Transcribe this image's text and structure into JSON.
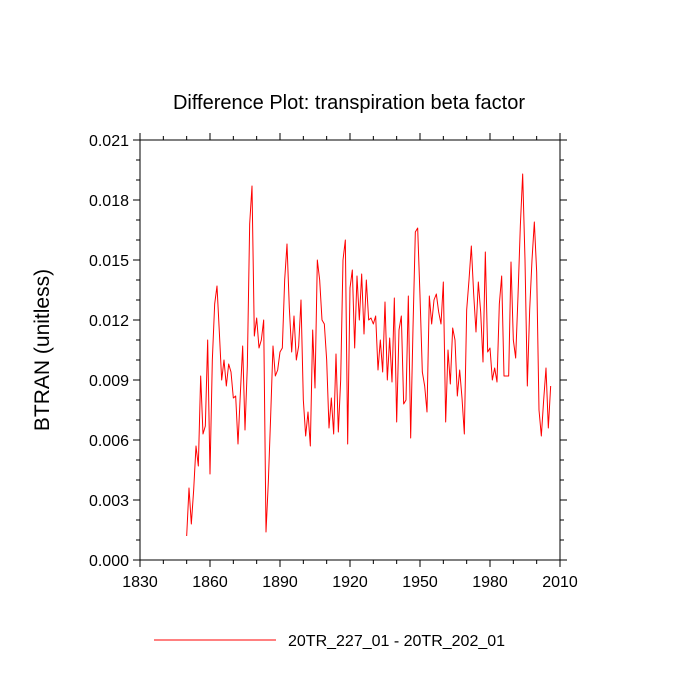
{
  "chart_data": {
    "type": "line",
    "title": "Difference Plot: transpiration beta factor",
    "xlabel": "",
    "ylabel": "BTRAN  (unitless)",
    "xlim": [
      1830,
      2010
    ],
    "ylim": [
      0.0,
      0.021
    ],
    "xticks": [
      1830,
      1860,
      1890,
      1920,
      1950,
      1980,
      2010
    ],
    "xtick_labels": [
      "1830",
      "1860",
      "1890",
      "1920",
      "1950",
      "1980",
      "2010"
    ],
    "yticks": [
      0.0,
      0.003,
      0.006,
      0.009,
      0.012,
      0.015,
      0.018,
      0.021
    ],
    "ytick_labels": [
      "0.000",
      "0.003",
      "0.006",
      "0.009",
      "0.012",
      "0.015",
      "0.018",
      "0.021"
    ],
    "legend": {
      "position": "bottom-center",
      "entries": [
        "20TR_227_01 - 20TR_202_01"
      ]
    },
    "series": [
      {
        "name": "20TR_227_01 - 20TR_202_01",
        "color": "#ff0000",
        "x_start": 1850,
        "x_step": 1,
        "values": [
          0.0012,
          0.0036,
          0.0018,
          0.0035,
          0.0057,
          0.0047,
          0.0092,
          0.0063,
          0.0067,
          0.011,
          0.0043,
          0.01,
          0.0128,
          0.0137,
          0.0114,
          0.009,
          0.01,
          0.0087,
          0.0098,
          0.0094,
          0.0081,
          0.0082,
          0.0058,
          0.0083,
          0.0107,
          0.0065,
          0.0097,
          0.0168,
          0.0187,
          0.0112,
          0.0121,
          0.0106,
          0.011,
          0.012,
          0.0014,
          0.0039,
          0.0072,
          0.0107,
          0.0092,
          0.0095,
          0.0104,
          0.0106,
          0.014,
          0.0158,
          0.0126,
          0.0104,
          0.0122,
          0.01,
          0.0107,
          0.013,
          0.008,
          0.0062,
          0.0074,
          0.0057,
          0.0115,
          0.0086,
          0.015,
          0.014,
          0.012,
          0.0118,
          0.01,
          0.0066,
          0.0081,
          0.0063,
          0.0103,
          0.0064,
          0.009,
          0.015,
          0.016,
          0.0058,
          0.0136,
          0.0145,
          0.0106,
          0.0142,
          0.012,
          0.0143,
          0.0113,
          0.014,
          0.012,
          0.0121,
          0.0118,
          0.0122,
          0.0095,
          0.011,
          0.0094,
          0.0129,
          0.009,
          0.0111,
          0.0089,
          0.0131,
          0.0069,
          0.0115,
          0.0122,
          0.0078,
          0.008,
          0.0132,
          0.0061,
          0.0116,
          0.0164,
          0.0166,
          0.0132,
          0.0094,
          0.0087,
          0.0074,
          0.0132,
          0.0118,
          0.013,
          0.0133,
          0.0124,
          0.0118,
          0.0139,
          0.0069,
          0.0105,
          0.0088,
          0.0116,
          0.011,
          0.0082,
          0.0095,
          0.0081,
          0.0063,
          0.0125,
          0.014,
          0.0157,
          0.0133,
          0.0114,
          0.0139,
          0.0124,
          0.0099,
          0.0154,
          0.0104,
          0.0106,
          0.009,
          0.0096,
          0.0089,
          0.0128,
          0.0142,
          0.0092,
          0.0092,
          0.0092,
          0.0149,
          0.011,
          0.0101,
          0.0132,
          0.0167,
          0.0193,
          0.015,
          0.0087,
          0.0125,
          0.015,
          0.0169,
          0.0144,
          0.0075,
          0.0062,
          0.008,
          0.0096,
          0.0066,
          0.0087
        ]
      }
    ]
  }
}
